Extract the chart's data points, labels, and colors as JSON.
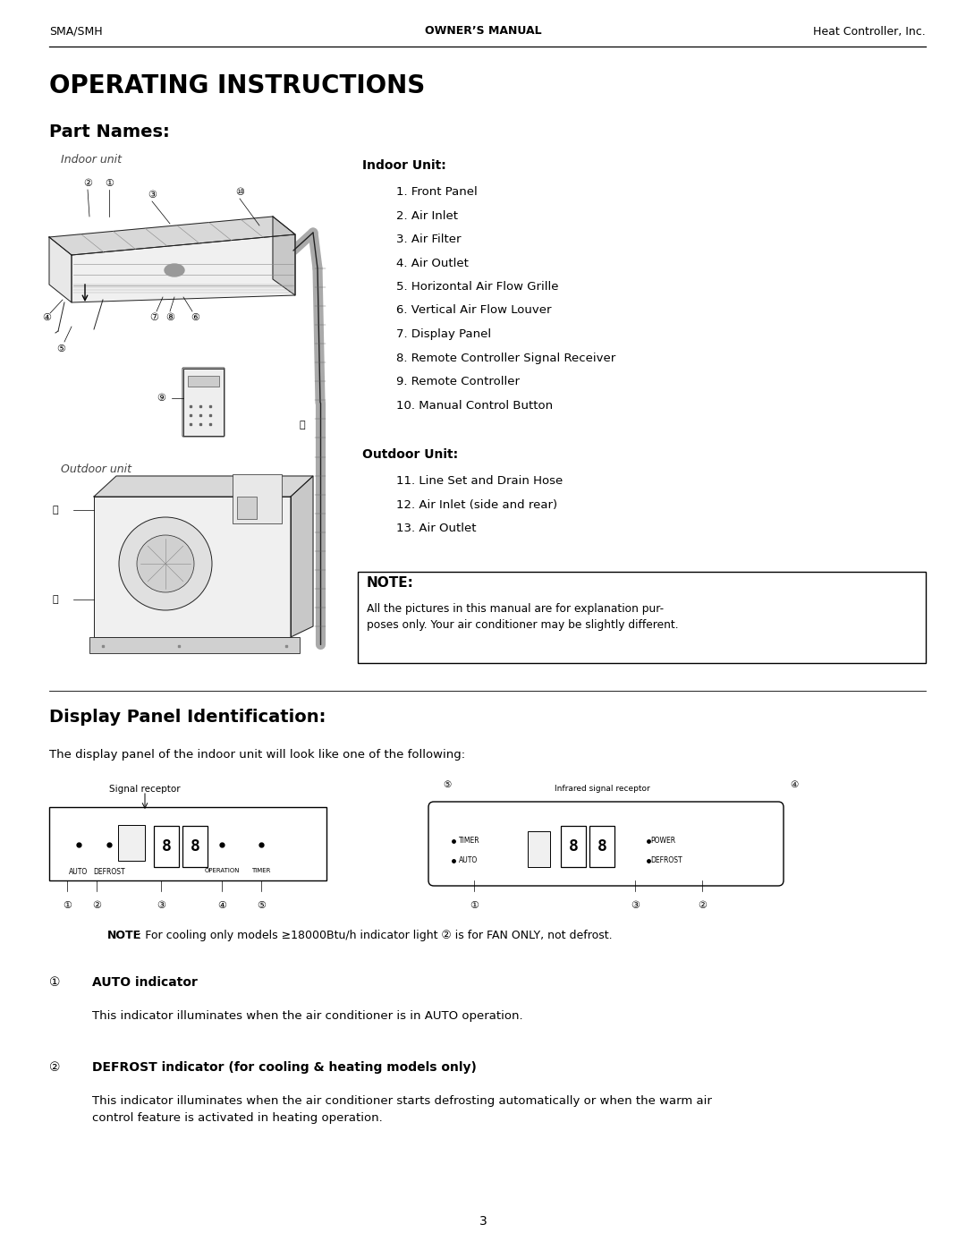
{
  "page_width": 10.8,
  "page_height": 13.97,
  "dpi": 100,
  "bg_color": "#ffffff",
  "header_left": "SMA/SMH",
  "header_center": "OWNER’S MANUAL",
  "header_right": "Heat Controller, Inc.",
  "header_fontsize": 9,
  "title": "OPERATING INSTRUCTIONS",
  "title_fontsize": 20,
  "section1_title": "Part Names:",
  "section1_fontsize": 14,
  "indoor_label": "Indoor unit",
  "outdoor_label": "Outdoor unit",
  "indoor_unit_title": "Indoor Unit:",
  "indoor_items": [
    "1. Front Panel",
    "2. Air Inlet",
    "3. Air Filter",
    "4. Air Outlet",
    "5. Horizontal Air Flow Grille",
    "6. Vertical Air Flow Louver",
    "7. Display Panel",
    "8. Remote Controller Signal Receiver",
    "9. Remote Controller",
    "10. Manual Control Button"
  ],
  "outdoor_unit_title": "Outdoor Unit:",
  "outdoor_items": [
    "11. Line Set and Drain Hose",
    "12. Air Inlet (side and rear)",
    "13. Air Outlet"
  ],
  "note_title": "NOTE:",
  "note_text": "All the pictures in this manual are for explanation pur-\nposes only. Your air conditioner may be slightly different.",
  "section2_title": "Display Panel Identification:",
  "section2_fontsize": 14,
  "display_desc": "The display panel of the indoor unit will look like one of the following:",
  "display_note_bold": "NOTE",
  "display_note_rest": ": For cooling only models ≥18000Btu/h indicator light ② is for FAN ONLY, not defrost.",
  "auto_num": "①",
  "auto_title": "AUTO indicator",
  "auto_text": "This indicator illuminates when the air conditioner is in AUTO operation.",
  "defrost_num": "②",
  "defrost_title": "DEFROST indicator (for cooling & heating models only)",
  "defrost_text": "This indicator illuminates when the air conditioner starts defrosting automatically or when the warm air\ncontrol feature is activated in heating operation.",
  "footer_num": "3",
  "list_indent": 0.38,
  "list_item_fontsize": 9.5,
  "list_title_fontsize": 10
}
